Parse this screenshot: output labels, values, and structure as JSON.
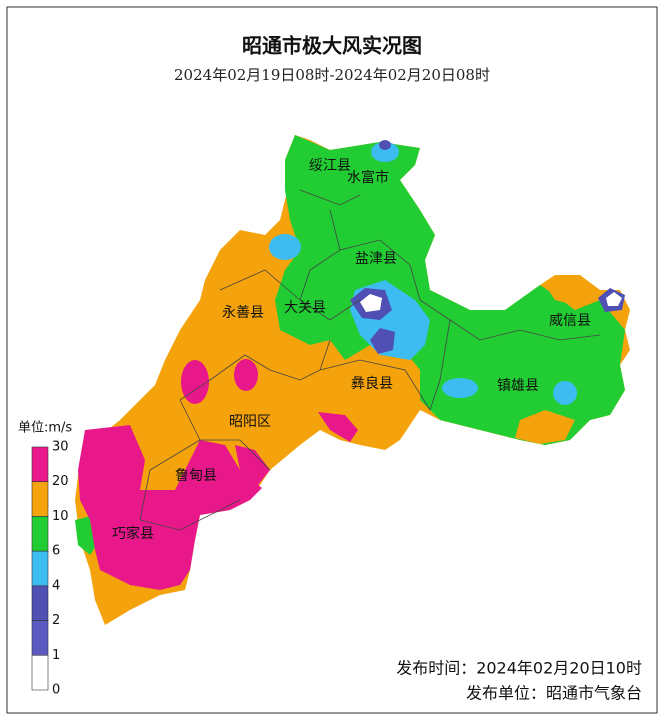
{
  "title": "昭通市极大风实况图",
  "subtitle": "2024年02月19日08时-2024年02月20日08时",
  "regions": [
    "绥江县",
    "水富市",
    "盐津县",
    "永善县",
    "大关县",
    "威信县",
    "彝良县",
    "镇雄县",
    "昭阳区",
    "鲁甸县",
    "巧家县"
  ],
  "legend": {
    "title": "单位:m/s",
    "ticks": [
      30,
      20,
      10,
      6,
      4,
      2,
      1,
      0
    ],
    "colors": [
      "#e8188a",
      "#f5a30c",
      "#22cc33",
      "#3cbcf0",
      "#5050b4",
      "#5a5ac0",
      "#ffffff"
    ]
  },
  "footer": {
    "time": "发布时间：2024年02月20日10时",
    "unit": "发布单位：昭通市气象台"
  }
}
